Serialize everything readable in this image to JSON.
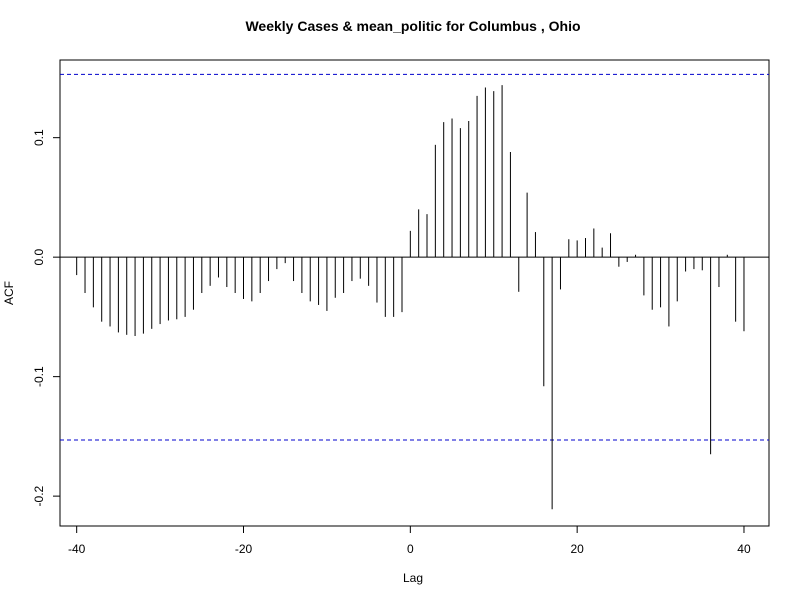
{
  "chart_data": {
    "type": "bar",
    "title": "Weekly Cases & mean_politic for Columbus , Ohio",
    "xlabel": "Lag",
    "ylabel": "ACF",
    "xlim": [
      -42,
      43
    ],
    "ylim": [
      -0.225,
      0.165
    ],
    "x_ticks": [
      -40,
      -20,
      0,
      20,
      40
    ],
    "y_ticks": [
      -0.2,
      -0.1,
      0.0,
      0.1
    ],
    "x_tick_labels": [
      "-40",
      "-20",
      "0",
      "20",
      "40"
    ],
    "y_tick_labels": [
      "-0.2",
      "-0.1",
      "0.0",
      "0.1"
    ],
    "confidence_bound": 0.153,
    "grid": false,
    "bar_color": "#000000",
    "bound_color": "#0000cc",
    "x": [
      -40,
      -39,
      -38,
      -37,
      -36,
      -35,
      -34,
      -33,
      -32,
      -31,
      -30,
      -29,
      -28,
      -27,
      -26,
      -25,
      -24,
      -23,
      -22,
      -21,
      -20,
      -19,
      -18,
      -17,
      -16,
      -15,
      -14,
      -13,
      -12,
      -11,
      -10,
      -9,
      -8,
      -7,
      -6,
      -5,
      -4,
      -3,
      -2,
      -1,
      0,
      1,
      2,
      3,
      4,
      5,
      6,
      7,
      8,
      9,
      10,
      11,
      12,
      13,
      14,
      15,
      16,
      17,
      18,
      19,
      20,
      21,
      22,
      23,
      24,
      25,
      26,
      27,
      28,
      29,
      30,
      31,
      32,
      33,
      34,
      35,
      36,
      37,
      38,
      39,
      40
    ],
    "values": [
      -0.015,
      -0.03,
      -0.042,
      -0.054,
      -0.058,
      -0.063,
      -0.065,
      -0.066,
      -0.064,
      -0.06,
      -0.056,
      -0.053,
      -0.052,
      -0.05,
      -0.044,
      -0.03,
      -0.024,
      -0.017,
      -0.025,
      -0.03,
      -0.035,
      -0.037,
      -0.03,
      -0.02,
      -0.01,
      -0.005,
      -0.02,
      -0.03,
      -0.037,
      -0.04,
      -0.045,
      -0.034,
      -0.03,
      -0.02,
      -0.018,
      -0.024,
      -0.038,
      -0.05,
      -0.05,
      -0.046,
      0.022,
      0.04,
      0.036,
      0.094,
      0.113,
      0.116,
      0.108,
      0.114,
      0.135,
      0.142,
      0.139,
      0.144,
      0.088,
      -0.029,
      0.054,
      0.021,
      -0.108,
      -0.211,
      -0.027,
      0.015,
      0.014,
      0.016,
      0.024,
      0.008,
      0.02,
      -0.008,
      -0.004,
      0.002,
      -0.032,
      -0.044,
      -0.042,
      -0.058,
      -0.037,
      -0.012,
      -0.01,
      -0.011,
      -0.165,
      -0.025,
      0.002,
      -0.054,
      -0.062
    ]
  }
}
